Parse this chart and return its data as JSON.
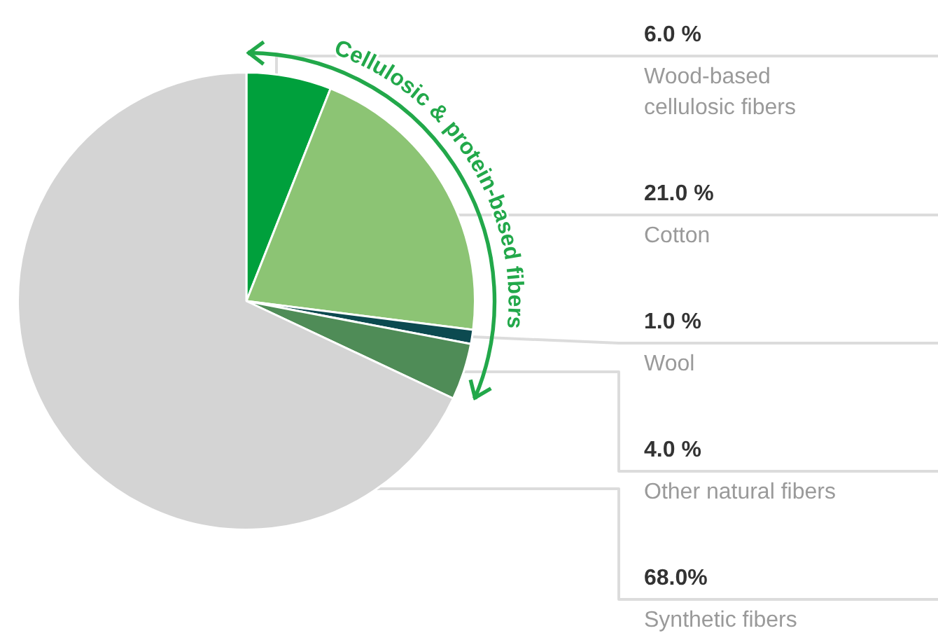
{
  "chart_data": {
    "type": "pie",
    "categories": [
      "Wood-based cellulosic fibers",
      "Cotton",
      "Wool",
      "Other natural fibers",
      "Synthetic fibers"
    ],
    "values": [
      6,
      21,
      1,
      4,
      68
    ],
    "colors": [
      "#00a03c",
      "#8cc474",
      "#0c4a50",
      "#4f8c57",
      "#d4d4d4"
    ],
    "value_labels": [
      "6.0 %",
      "21.0 %",
      "1.0 %",
      "4.0 %",
      "68.0%"
    ],
    "annotations": [
      "Cellulosic & protein-based fibers"
    ]
  }
}
